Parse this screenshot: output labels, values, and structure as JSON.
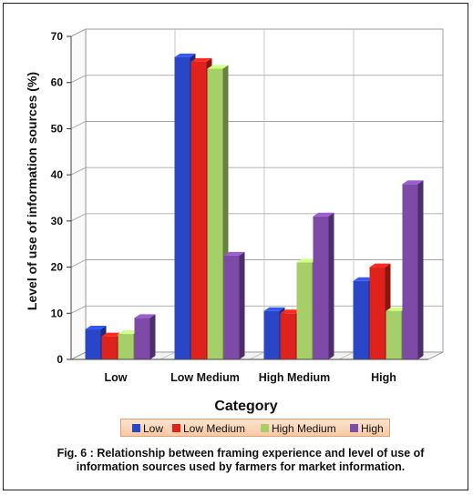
{
  "chart_data": {
    "type": "bar",
    "categories": [
      "Low",
      "Low Medium",
      "High Medium",
      "High"
    ],
    "series": [
      {
        "name": "Low",
        "values": [
          6.5,
          65.5,
          10.5,
          17
        ],
        "color": "#2a46c8"
      },
      {
        "name": "Low Medium",
        "values": [
          5,
          64.5,
          10,
          20
        ],
        "color": "#e0221c"
      },
      {
        "name": "High Medium",
        "values": [
          5.5,
          63,
          21,
          10.5
        ],
        "color": "#a6cf6a"
      },
      {
        "name": "High",
        "values": [
          9,
          22.5,
          31,
          38
        ],
        "color": "#7d4aa8"
      }
    ],
    "xlabel": "Category",
    "ylabel": "Level of use of information sources (%)",
    "ylim": [
      0,
      70
    ],
    "yticks": [
      "0",
      "10",
      "20",
      "30",
      "40",
      "50",
      "60",
      "70"
    ],
    "grid": true,
    "legend_position": "bottom"
  },
  "caption": "Fig.  6 : Relationship between framing experience and level of use of information sources used by farmers for market information."
}
